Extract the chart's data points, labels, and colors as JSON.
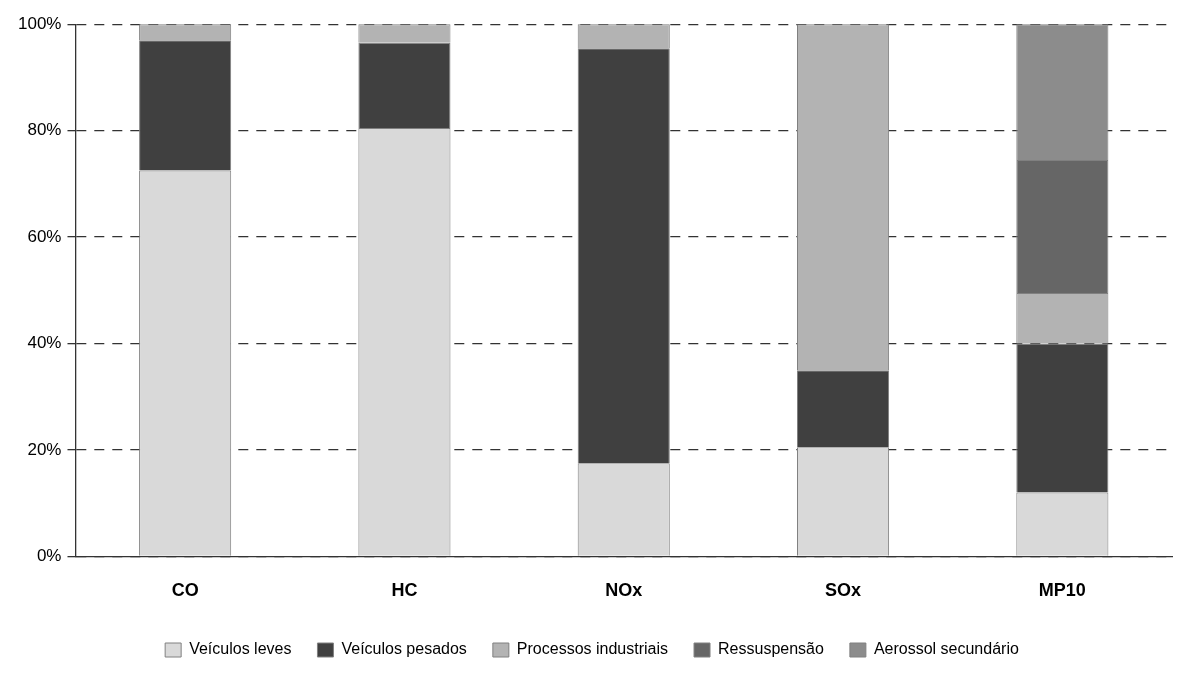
{
  "chart_data": {
    "type": "bar",
    "stacked": true,
    "categories": [
      "CO",
      "HC",
      "NOx",
      "SOx",
      "MP10"
    ],
    "series": [
      {
        "name": "Veículos leves",
        "color": "#d9d9d9",
        "values": [
          72.5,
          80.5,
          17.5,
          20.5,
          12
        ]
      },
      {
        "name": "Veículos pesados",
        "color": "#404040",
        "values": [
          24.5,
          16,
          78,
          14.5,
          28
        ]
      },
      {
        "name": "Processos industriais",
        "color": "#b3b3b3",
        "values": [
          3,
          3.5,
          4.5,
          65,
          9.5
        ]
      },
      {
        "name": "Ressuspensão",
        "color": "#666666",
        "values": [
          null,
          null,
          null,
          null,
          25
        ]
      },
      {
        "name": "Aerossol secundário",
        "color": "#8c8c8c",
        "values": [
          null,
          null,
          null,
          null,
          25.5
        ]
      }
    ],
    "ylim": [
      0,
      100
    ],
    "yticks": [
      {
        "value": 0,
        "label": "0%"
      },
      {
        "value": 20,
        "label": "20%"
      },
      {
        "value": 40,
        "label": "40%"
      },
      {
        "value": 60,
        "label": "60%"
      },
      {
        "value": 80,
        "label": "80%"
      },
      {
        "value": 100,
        "label": "100%"
      }
    ],
    "grid": "y",
    "legend": "bottom"
  }
}
